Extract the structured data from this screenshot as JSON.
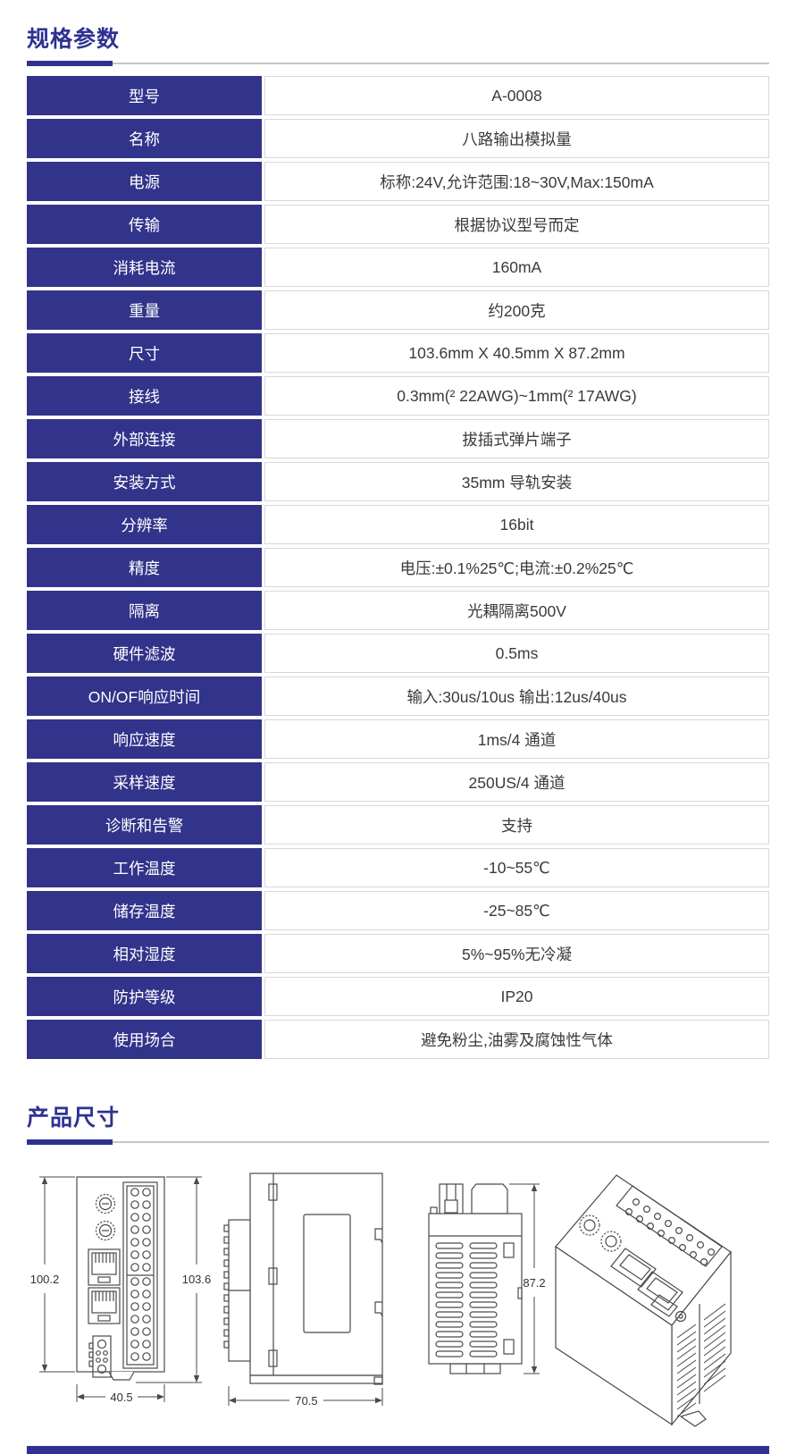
{
  "page": {
    "accent_color": "#2e3192",
    "table_header_bg": "#32338a",
    "divider_gray": "#c6c6c6"
  },
  "sections": {
    "specs": {
      "title": "规格参数"
    },
    "dimensions": {
      "title": "产品尺寸"
    }
  },
  "spec_table": {
    "rows": [
      {
        "label": "型号",
        "value": "A-0008"
      },
      {
        "label": "名称",
        "value": "八路输出模拟量"
      },
      {
        "label": "电源",
        "value": "标称:24V,允许范围:18~30V,Max:150mA"
      },
      {
        "label": "传输",
        "value": "根据协议型号而定"
      },
      {
        "label": "消耗电流",
        "value": "160mA"
      },
      {
        "label": "重量",
        "value": "约200克"
      },
      {
        "label": "尺寸",
        "value": "103.6mm X 40.5mm X 87.2mm"
      },
      {
        "label": "接线",
        "value": "0.3mm(² 22AWG)~1mm(² 17AWG)"
      },
      {
        "label": "外部连接",
        "value": "拔插式弹片端子"
      },
      {
        "label": "安装方式",
        "value": "35mm 导轨安装"
      },
      {
        "label": "分辨率",
        "value": "16bit"
      },
      {
        "label": "精度",
        "value": "电压:±0.1%25℃;电流:±0.2%25℃"
      },
      {
        "label": "隔离",
        "value": "光耦隔离500V"
      },
      {
        "label": "硬件滤波",
        "value": "0.5ms"
      },
      {
        "label": "ON/OF响应时间",
        "value": "输入:30us/10us 输出:12us/40us"
      },
      {
        "label": "响应速度",
        "value": "1ms/4 通道"
      },
      {
        "label": "采样速度",
        "value": "250US/4 通道"
      },
      {
        "label": "诊断和告警",
        "value": "支持"
      },
      {
        "label": "工作温度",
        "value": "-10~55℃"
      },
      {
        "label": "储存温度",
        "value": "-25~85℃"
      },
      {
        "label": "相对湿度",
        "value": "5%~95%无冷凝"
      },
      {
        "label": "防护等级",
        "value": "IP20"
      },
      {
        "label": "使用场合",
        "value": "避免粉尘,油雾及腐蚀性气体"
      }
    ]
  },
  "drawings": {
    "front_view": {
      "dim_left": "100.2",
      "dim_right": "103.6",
      "dim_bottom": "40.5"
    },
    "side_view": {
      "dim_bottom": "70.5"
    },
    "top_view": {
      "dim_right": "87.2"
    },
    "iso_view": {}
  }
}
